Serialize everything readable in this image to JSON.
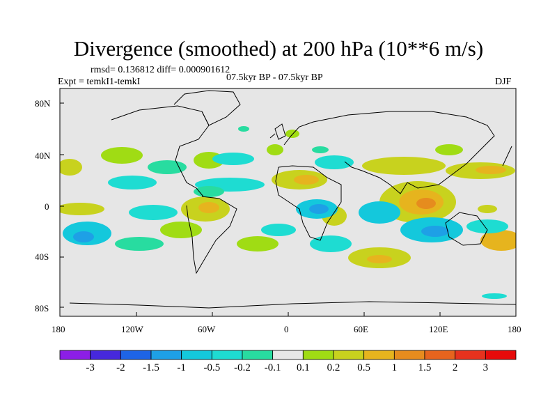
{
  "title": "Divergence (smoothed) at 200 hPa (10**6 m/s)",
  "stats": "rmsd= 0.136812 diff= 0.000901612",
  "experiment": "Expt = temkI1-temkI",
  "period": "07.5kyr BP - 07.5kyr BP",
  "season": "DJF",
  "axes": {
    "x_ticks": [
      "180",
      "120W",
      "60W",
      "0",
      "60E",
      "120E",
      "180"
    ],
    "y_ticks": [
      "80N",
      "40N",
      "0",
      "40S",
      "80S"
    ],
    "x_range": [
      -180,
      180
    ],
    "y_range": [
      -90,
      90
    ]
  },
  "colorbar": {
    "labels": [
      "-3",
      "-2",
      "-1.5",
      "-1",
      "-0.5",
      "-0.2",
      "-0.1",
      "0.1",
      "0.2",
      "0.5",
      "1",
      "1.5",
      "2",
      "3"
    ],
    "colors": [
      "#8c1ee6",
      "#4628dc",
      "#1e64e6",
      "#1ea0e6",
      "#14c8dc",
      "#1edcd2",
      "#28dca0",
      "#e6e6e6",
      "#a0dc14",
      "#c8d21e",
      "#e6b41e",
      "#e68c1e",
      "#e6641e",
      "#e6321e",
      "#e60a0a"
    ]
  },
  "colors": {
    "background": "#e6e6e6",
    "coast": "#000000"
  }
}
